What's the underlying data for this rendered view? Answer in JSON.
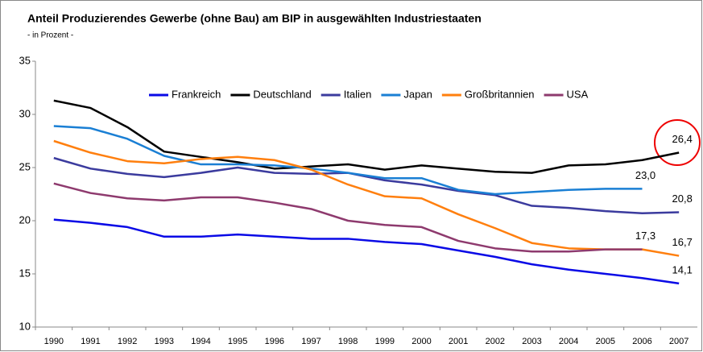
{
  "chart_data": {
    "type": "line",
    "title": "Anteil Produzierendes Gewerbe (ohne Bau) am BIP in ausgewählten Industriestaaten",
    "subtitle": "- in Prozent -",
    "categories": [
      "1990",
      "1991",
      "1992",
      "1993",
      "1994",
      "1995",
      "1996",
      "1997",
      "1998",
      "1999",
      "2000",
      "2001",
      "2002",
      "2003",
      "2004",
      "2005",
      "2006",
      "2007"
    ],
    "ylim": [
      10,
      35
    ],
    "yticks": [
      10,
      15,
      20,
      25,
      30,
      35
    ],
    "grid": false,
    "legend": "top",
    "series": [
      {
        "name": "Frankreich",
        "color": "#0a0ae6",
        "values": [
          20.1,
          19.8,
          19.4,
          18.5,
          18.5,
          18.7,
          18.5,
          18.3,
          18.3,
          18.0,
          17.8,
          17.2,
          16.6,
          15.9,
          15.4,
          15.0,
          14.6,
          14.1
        ],
        "value_labels": [
          null,
          null,
          null,
          null,
          null,
          null,
          null,
          null,
          null,
          null,
          null,
          null,
          null,
          null,
          null,
          null,
          null,
          "14,1"
        ]
      },
      {
        "name": "Deutschland",
        "color": "#000000",
        "values": [
          31.3,
          30.6,
          28.8,
          26.5,
          26.0,
          25.5,
          24.9,
          25.1,
          25.3,
          24.8,
          25.2,
          24.9,
          24.6,
          24.5,
          25.2,
          25.3,
          25.7,
          26.4
        ],
        "value_labels": [
          null,
          null,
          null,
          null,
          null,
          null,
          null,
          null,
          null,
          null,
          null,
          null,
          null,
          null,
          null,
          null,
          null,
          "26,4"
        ]
      },
      {
        "name": "Italien",
        "color": "#3b3b9e",
        "values": [
          25.9,
          24.9,
          24.4,
          24.1,
          24.5,
          25.0,
          24.5,
          24.4,
          24.5,
          23.8,
          23.4,
          22.8,
          22.4,
          21.4,
          21.2,
          20.9,
          20.7,
          20.8
        ],
        "value_labels": [
          null,
          null,
          null,
          null,
          null,
          null,
          null,
          null,
          null,
          null,
          null,
          null,
          null,
          null,
          null,
          null,
          null,
          "20,8"
        ]
      },
      {
        "name": "Japan",
        "color": "#1a7fd4",
        "values": [
          28.9,
          28.7,
          27.7,
          26.1,
          25.3,
          25.3,
          25.2,
          24.9,
          24.5,
          24.0,
          24.0,
          22.9,
          22.5,
          22.7,
          22.9,
          23.0,
          23.0,
          null
        ],
        "value_labels": [
          null,
          null,
          null,
          null,
          null,
          null,
          null,
          null,
          null,
          null,
          null,
          null,
          null,
          null,
          null,
          null,
          "23,0",
          null
        ]
      },
      {
        "name": "Großbritannien",
        "color": "#ff7f0e",
        "values": [
          27.5,
          26.4,
          25.6,
          25.4,
          25.8,
          26.0,
          25.7,
          24.8,
          23.4,
          22.3,
          22.1,
          20.6,
          19.3,
          17.9,
          17.4,
          17.3,
          17.3,
          16.7
        ],
        "value_labels": [
          null,
          null,
          null,
          null,
          null,
          null,
          null,
          null,
          null,
          null,
          null,
          null,
          null,
          null,
          null,
          null,
          null,
          "16,7"
        ]
      },
      {
        "name": "USA",
        "color": "#8e3a6e",
        "values": [
          23.5,
          22.6,
          22.1,
          21.9,
          22.2,
          22.2,
          21.7,
          21.1,
          20.0,
          19.6,
          19.4,
          18.1,
          17.4,
          17.1,
          17.1,
          17.3,
          17.3,
          null
        ],
        "value_labels": [
          null,
          null,
          null,
          null,
          null,
          null,
          null,
          null,
          null,
          null,
          null,
          null,
          null,
          null,
          null,
          null,
          "17,3",
          null
        ]
      }
    ]
  }
}
